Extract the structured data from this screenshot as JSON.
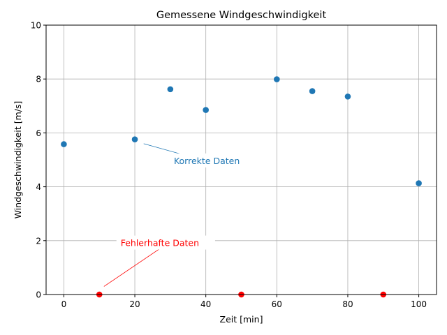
{
  "chart_data": {
    "type": "scatter",
    "title": "Gemessene Windgeschwindigkeit",
    "xlabel": "Zeit [min]",
    "ylabel": "Windgeschwindigkeit [m/s]",
    "xlim": [
      -5,
      105
    ],
    "ylim": [
      0,
      10
    ],
    "xticks": [
      0,
      20,
      40,
      60,
      80,
      100
    ],
    "yticks": [
      0,
      2,
      4,
      6,
      8,
      10
    ],
    "grid": true,
    "series": [
      {
        "color": "#1f77b4",
        "x": [
          0,
          20,
          30,
          40,
          60,
          70,
          80,
          100
        ],
        "y": [
          5.58,
          5.76,
          7.62,
          6.85,
          7.99,
          7.55,
          7.35,
          4.13
        ]
      },
      {
        "color": "#ff0000",
        "x": [
          10,
          50,
          90
        ],
        "y": [
          0,
          0,
          0
        ]
      }
    ],
    "annotations": [
      {
        "text": "Korrekte Daten",
        "color": "#1f77b4",
        "point": [
          22.5,
          5.6
        ],
        "text_pos": [
          31,
          4.9
        ]
      },
      {
        "text": "Fehlerhafte Daten",
        "color": "#ff0000",
        "point": [
          11.3,
          0.3
        ],
        "text_pos": [
          16,
          1.85
        ]
      }
    ]
  }
}
